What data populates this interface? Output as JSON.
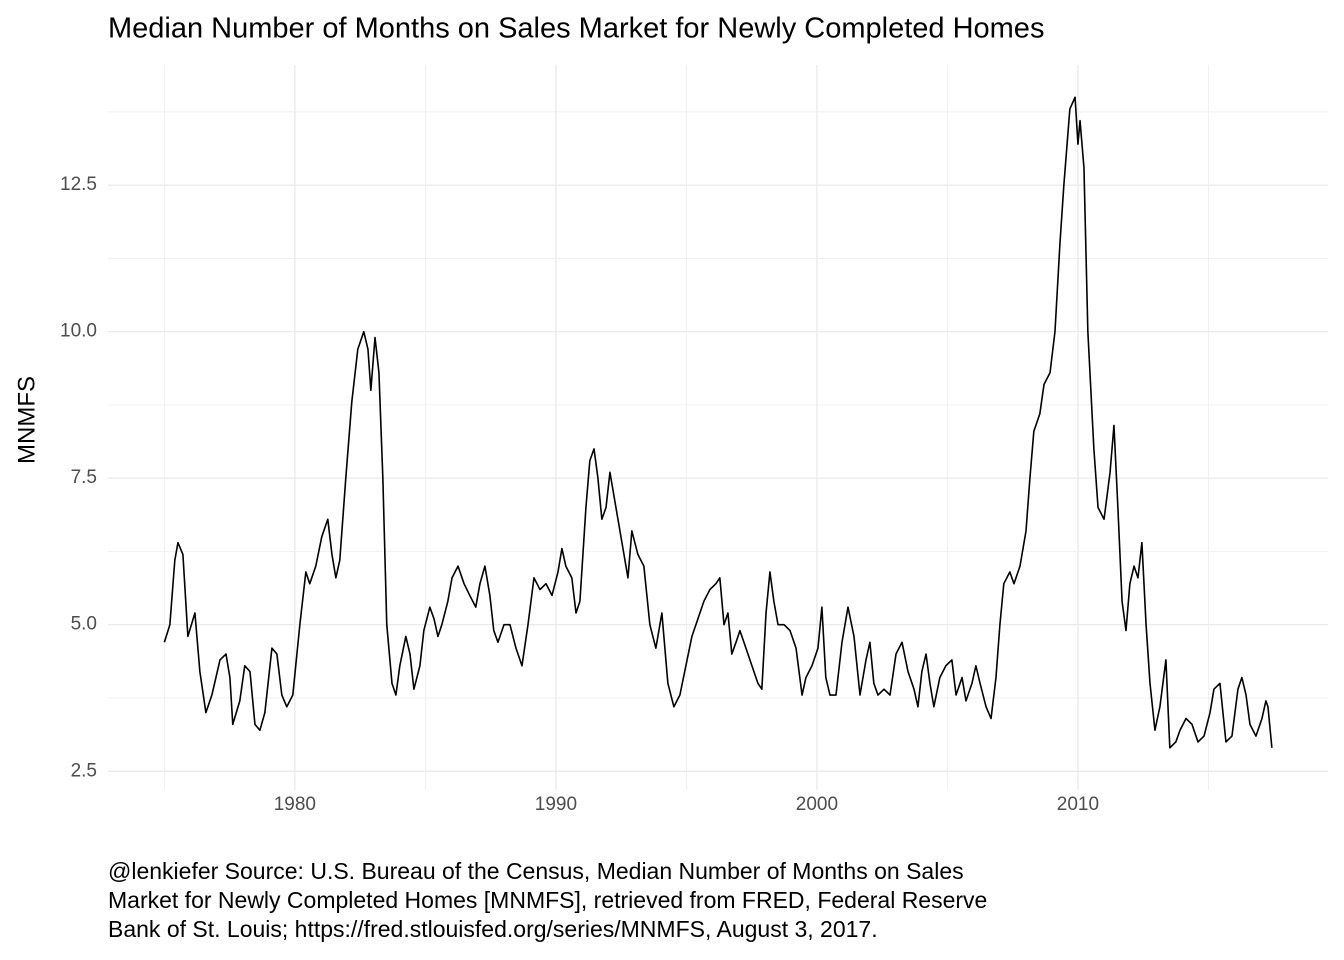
{
  "chart_data": {
    "type": "line",
    "title": "Median Number of Months on Sales Market for Newly Completed Homes",
    "y_label": "MNMFS",
    "caption": [
      "@lenkiefer Source: U.S. Bureau of the Census, Median Number of Months on Sales",
      "Market for Newly Completed Homes [MNMFS], retrieved from FRED, Federal Reserve",
      "Bank of St. Louis; https://fred.stlouisfed.org/series/MNMFS, August 3, 2017."
    ],
    "color": "#000000",
    "grid": true,
    "xlim": [
      1972.84,
      2019.58
    ],
    "xticks": [
      1980,
      1990,
      2000,
      2010
    ],
    "ylim": [
      2.18,
      14.55
    ],
    "yticks": [
      2.5,
      {
        "value": 5,
        "label": "5.0"
      },
      7.5,
      {
        "value": 10,
        "label": "10.0"
      },
      12.5
    ],
    "x": [
      1975.0,
      1975.21,
      1975.4,
      1975.52,
      1975.71,
      1975.9,
      1976.17,
      1976.36,
      1976.59,
      1976.82,
      1977.13,
      1977.36,
      1977.51,
      1977.62,
      1977.89,
      1978.08,
      1978.28,
      1978.47,
      1978.66,
      1978.85,
      1979.12,
      1979.31,
      1979.5,
      1979.69,
      1979.92,
      1980.19,
      1980.42,
      1980.57,
      1980.8,
      1981.03,
      1981.26,
      1981.42,
      1981.57,
      1981.72,
      1981.95,
      1982.18,
      1982.41,
      1982.64,
      1982.8,
      1982.91,
      1983.07,
      1983.22,
      1983.37,
      1983.52,
      1983.72,
      1983.87,
      1984.02,
      1984.25,
      1984.41,
      1984.56,
      1984.79,
      1984.94,
      1985.17,
      1985.33,
      1985.48,
      1985.63,
      1985.86,
      1986.02,
      1986.25,
      1986.48,
      1986.7,
      1986.93,
      1987.09,
      1987.28,
      1987.47,
      1987.62,
      1987.78,
      1988.01,
      1988.24,
      1988.47,
      1988.7,
      1988.93,
      1989.16,
      1989.39,
      1989.62,
      1989.85,
      1990.08,
      1990.23,
      1990.38,
      1990.61,
      1990.77,
      1990.92,
      1991.15,
      1991.3,
      1991.46,
      1991.61,
      1991.76,
      1991.92,
      1992.07,
      1992.3,
      1992.53,
      1992.76,
      1992.91,
      1993.14,
      1993.37,
      1993.6,
      1993.83,
      1994.06,
      1994.29,
      1994.52,
      1994.75,
      1994.98,
      1995.21,
      1995.44,
      1995.67,
      1995.9,
      1996.13,
      1996.28,
      1996.44,
      1996.59,
      1996.74,
      1996.9,
      1997.05,
      1997.28,
      1997.51,
      1997.74,
      1997.89,
      1998.05,
      1998.2,
      1998.35,
      1998.51,
      1998.74,
      1998.97,
      1999.2,
      1999.43,
      1999.58,
      1999.81,
      2000.04,
      2000.19,
      2000.34,
      2000.5,
      2000.73,
      2000.96,
      2001.19,
      2001.42,
      2001.65,
      2001.88,
      2002.03,
      2002.18,
      2002.34,
      2002.57,
      2002.8,
      2003.03,
      2003.26,
      2003.49,
      2003.72,
      2003.87,
      2004.02,
      2004.18,
      2004.33,
      2004.48,
      2004.71,
      2004.94,
      2005.17,
      2005.33,
      2005.56,
      2005.71,
      2005.94,
      2006.09,
      2006.25,
      2006.48,
      2006.67,
      2006.86,
      2007.01,
      2007.16,
      2007.39,
      2007.55,
      2007.78,
      2008.01,
      2008.16,
      2008.31,
      2008.54,
      2008.7,
      2008.93,
      2009.12,
      2009.31,
      2009.46,
      2009.69,
      2009.89,
      2010.0,
      2010.08,
      2010.23,
      2010.38,
      2010.61,
      2010.77,
      2011.0,
      2011.23,
      2011.38,
      2011.53,
      2011.69,
      2011.84,
      2011.99,
      2012.15,
      2012.3,
      2012.45,
      2012.61,
      2012.76,
      2012.95,
      2013.14,
      2013.37,
      2013.52,
      2013.75,
      2013.91,
      2014.14,
      2014.37,
      2014.6,
      2014.83,
      2015.06,
      2015.21,
      2015.44,
      2015.67,
      2015.9,
      2016.13,
      2016.28,
      2016.44,
      2016.59,
      2016.82,
      2017.05,
      2017.2,
      2017.28,
      2017.43
    ],
    "values": [
      4.7,
      5.0,
      6.1,
      6.4,
      6.2,
      4.8,
      5.2,
      4.2,
      3.5,
      3.8,
      4.4,
      4.5,
      4.1,
      3.3,
      3.7,
      4.3,
      4.2,
      3.3,
      3.2,
      3.5,
      4.6,
      4.5,
      3.8,
      3.6,
      3.8,
      5.0,
      5.9,
      5.7,
      6.0,
      6.5,
      6.8,
      6.2,
      5.8,
      6.1,
      7.5,
      8.8,
      9.7,
      10.0,
      9.7,
      9.0,
      9.9,
      9.3,
      7.5,
      5.0,
      4.0,
      3.8,
      4.3,
      4.8,
      4.5,
      3.9,
      4.3,
      4.9,
      5.3,
      5.1,
      4.8,
      5.0,
      5.4,
      5.8,
      6.0,
      5.7,
      5.5,
      5.3,
      5.7,
      6.0,
      5.5,
      4.9,
      4.7,
      5.0,
      5.0,
      4.6,
      4.3,
      5.0,
      5.8,
      5.6,
      5.7,
      5.5,
      5.9,
      6.3,
      6.0,
      5.8,
      5.2,
      5.4,
      7.0,
      7.8,
      8.0,
      7.5,
      6.8,
      7.0,
      7.6,
      7.0,
      6.4,
      5.8,
      6.6,
      6.2,
      6.0,
      5.0,
      4.6,
      5.2,
      4.0,
      3.6,
      3.8,
      4.3,
      4.8,
      5.1,
      5.4,
      5.6,
      5.7,
      5.8,
      5.0,
      5.2,
      4.5,
      4.7,
      4.9,
      4.6,
      4.3,
      4.0,
      3.9,
      5.2,
      5.9,
      5.4,
      5.0,
      5.0,
      4.9,
      4.6,
      3.8,
      4.1,
      4.3,
      4.6,
      5.3,
      4.1,
      3.8,
      3.8,
      4.7,
      5.3,
      4.8,
      3.8,
      4.4,
      4.7,
      4.0,
      3.8,
      3.9,
      3.8,
      4.5,
      4.7,
      4.2,
      3.9,
      3.6,
      4.2,
      4.5,
      4.0,
      3.6,
      4.1,
      4.3,
      4.4,
      3.8,
      4.1,
      3.7,
      4.0,
      4.3,
      4.0,
      3.6,
      3.4,
      4.1,
      5.0,
      5.7,
      5.9,
      5.7,
      6.0,
      6.6,
      7.5,
      8.3,
      8.6,
      9.1,
      9.3,
      10.0,
      11.5,
      12.5,
      13.8,
      14.0,
      13.2,
      13.6,
      12.8,
      10.0,
      8.0,
      7.0,
      6.8,
      7.6,
      8.4,
      7.0,
      5.4,
      4.9,
      5.7,
      6.0,
      5.8,
      6.4,
      5.0,
      4.0,
      3.2,
      3.6,
      4.4,
      2.9,
      3.0,
      3.2,
      3.4,
      3.3,
      3.0,
      3.1,
      3.5,
      3.9,
      4.0,
      3.0,
      3.1,
      3.9,
      4.1,
      3.8,
      3.3,
      3.1,
      3.4,
      3.7,
      3.6,
      2.9
    ]
  }
}
